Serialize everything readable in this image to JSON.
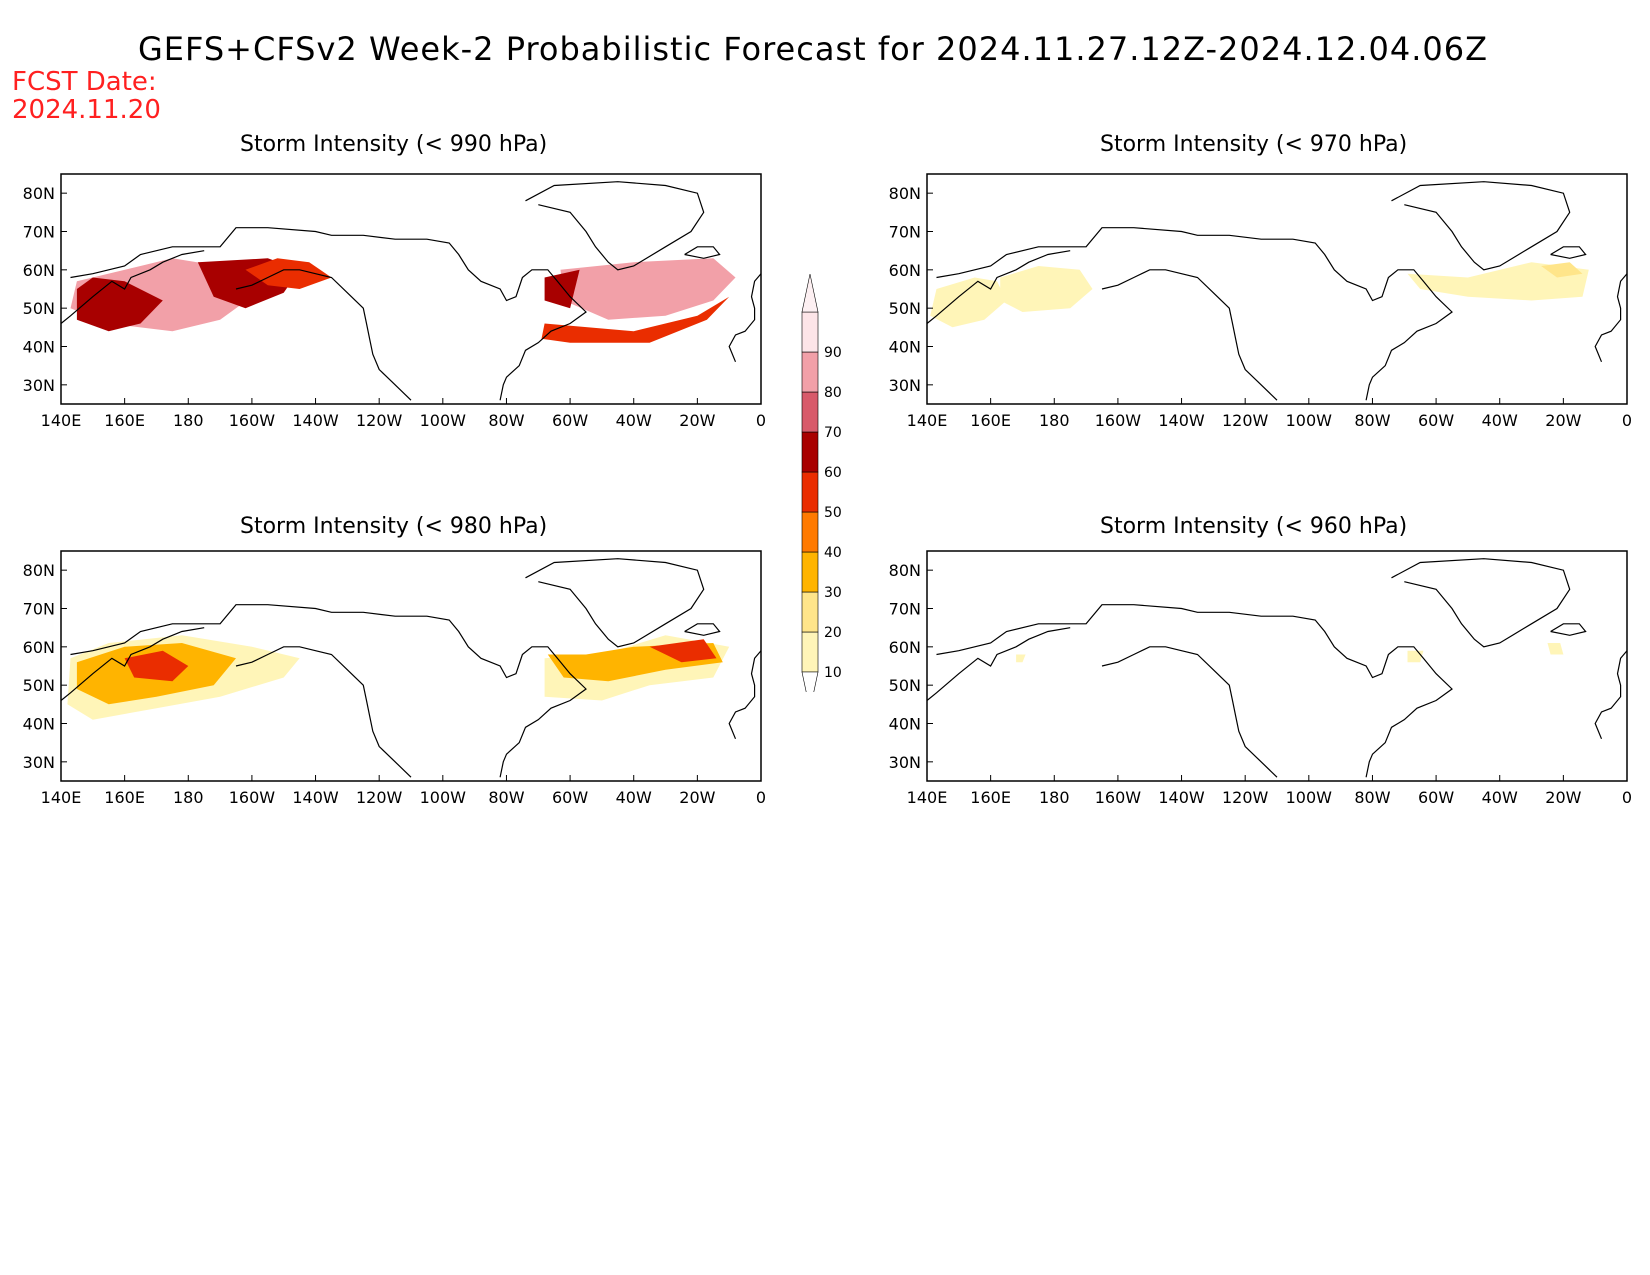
{
  "header": {
    "title": "GEFS+CFSv2 Week-2 Probabilistic Forecast for 2024.11.27.12Z-2024.12.04.06Z",
    "fcst_label": "FCST Date:",
    "fcst_date": "2024.11.20"
  },
  "axes": {
    "lon_labels": [
      "140E",
      "160E",
      "180",
      "160W",
      "140W",
      "120W",
      "100W",
      "80W",
      "60W",
      "40W",
      "20W",
      "0"
    ],
    "lat_labels": [
      "80N",
      "70N",
      "60N",
      "50N",
      "40N",
      "30N"
    ]
  },
  "panels": [
    {
      "id": "p990",
      "title": "Storm Intensity (< 990 hPa)",
      "regions": [
        {
          "level": 80,
          "pts": [
            [
              145,
              57
            ],
            [
              175,
              63
            ],
            [
              190,
              61
            ],
            [
              200,
              56
            ],
            [
              208,
              58
            ],
            [
              200,
              53
            ],
            [
              190,
              47
            ],
            [
              175,
              44
            ],
            [
              155,
              46
            ],
            [
              143,
              50
            ]
          ]
        },
        {
          "level": 60,
          "pts": [
            [
              145,
              55
            ],
            [
              150,
              58
            ],
            [
              160,
              57
            ],
            [
              172,
              52
            ],
            [
              165,
              46
            ],
            [
              155,
              44
            ],
            [
              145,
              47
            ]
          ]
        },
        {
          "level": 60,
          "pts": [
            [
              183,
              62
            ],
            [
              205,
              63
            ],
            [
              215,
              60
            ],
            [
              210,
              54
            ],
            [
              198,
              50
            ],
            [
              188,
              53
            ]
          ]
        },
        {
          "level": 50,
          "pts": [
            [
              198,
              60
            ],
            [
              208,
              63
            ],
            [
              218,
              62
            ],
            [
              225,
              58
            ],
            [
              215,
              55
            ],
            [
              205,
              56
            ]
          ]
        },
        {
          "level": 80,
          "pts": [
            [
              297,
              60
            ],
            [
              320,
              62
            ],
            [
              345,
              63
            ],
            [
              352,
              58
            ],
            [
              345,
              52
            ],
            [
              330,
              48
            ],
            [
              312,
              47
            ],
            [
              298,
              52
            ]
          ]
        },
        {
          "level": 60,
          "pts": [
            [
              292,
              58
            ],
            [
              303,
              60
            ],
            [
              300,
              50
            ],
            [
              292,
              52
            ]
          ]
        },
        {
          "level": 50,
          "pts": [
            [
              292,
              46
            ],
            [
              320,
              44
            ],
            [
              340,
              48
            ],
            [
              350,
              53
            ],
            [
              343,
              47
            ],
            [
              325,
              41
            ],
            [
              300,
              41
            ],
            [
              291,
              42
            ]
          ]
        }
      ]
    },
    {
      "id": "p970",
      "title": "Storm Intensity (< 970 hPa)",
      "regions": [
        {
          "level": 10,
          "pts": [
            [
              143,
              55
            ],
            [
              155,
              58
            ],
            [
              162,
              57
            ],
            [
              165,
              52
            ],
            [
              158,
              47
            ],
            [
              148,
              45
            ],
            [
              141,
              48
            ]
          ]
        },
        {
          "level": 10,
          "pts": [
            [
              163,
              58
            ],
            [
              175,
              61
            ],
            [
              188,
              60
            ],
            [
              192,
              55
            ],
            [
              185,
              50
            ],
            [
              170,
              49
            ],
            [
              163,
              52
            ]
          ]
        },
        {
          "level": 10,
          "pts": [
            [
              291,
              59
            ],
            [
              310,
              58
            ],
            [
              330,
              62
            ],
            [
              348,
              60
            ],
            [
              346,
              53
            ],
            [
              330,
              52
            ],
            [
              310,
              53
            ],
            [
              295,
              55
            ]
          ]
        },
        {
          "level": 20,
          "pts": [
            [
              333,
              61
            ],
            [
              342,
              62
            ],
            [
              346,
              59
            ],
            [
              338,
              58
            ]
          ]
        }
      ]
    },
    {
      "id": "p980",
      "title": "Storm Intensity (< 980 hPa)",
      "regions": [
        {
          "level": 10,
          "pts": [
            [
              143,
              57
            ],
            [
              155,
              61
            ],
            [
              178,
              63
            ],
            [
              200,
              60
            ],
            [
              215,
              57
            ],
            [
              210,
              52
            ],
            [
              190,
              47
            ],
            [
              170,
              44
            ],
            [
              150,
              41
            ],
            [
              142,
              45
            ]
          ]
        },
        {
          "level": 30,
          "pts": [
            [
              145,
              56
            ],
            [
              160,
              60
            ],
            [
              178,
              61
            ],
            [
              195,
              57
            ],
            [
              188,
              50
            ],
            [
              170,
              47
            ],
            [
              155,
              45
            ],
            [
              145,
              49
            ]
          ]
        },
        {
          "level": 50,
          "pts": [
            [
              160,
              57
            ],
            [
              172,
              59
            ],
            [
              180,
              55
            ],
            [
              175,
              51
            ],
            [
              163,
              52
            ]
          ]
        },
        {
          "level": 10,
          "pts": [
            [
              292,
              57
            ],
            [
              310,
              58
            ],
            [
              330,
              63
            ],
            [
              350,
              60
            ],
            [
              345,
              52
            ],
            [
              325,
              50
            ],
            [
              310,
              46
            ],
            [
              292,
              47
            ]
          ]
        },
        {
          "level": 30,
          "pts": [
            [
              293,
              58
            ],
            [
              305,
              58
            ],
            [
              320,
              60
            ],
            [
              345,
              61
            ],
            [
              348,
              56
            ],
            [
              330,
              54
            ],
            [
              312,
              51
            ],
            [
              298,
              52
            ]
          ]
        },
        {
          "level": 50,
          "pts": [
            [
              325,
              60
            ],
            [
              342,
              62
            ],
            [
              346,
              57
            ],
            [
              335,
              56
            ]
          ]
        }
      ]
    },
    {
      "id": "p960",
      "title": "Storm Intensity (< 960 hPa)",
      "regions": [
        {
          "level": 10,
          "pts": [
            [
              335,
              61
            ],
            [
              339,
              61
            ],
            [
              340,
              58
            ],
            [
              336,
              58
            ]
          ]
        },
        {
          "level": 10,
          "pts": [
            [
              291,
              59
            ],
            [
              296,
              59
            ],
            [
              295,
              56
            ],
            [
              291,
              56
            ]
          ]
        },
        {
          "level": 10,
          "pts": [
            [
              168,
              58
            ],
            [
              171,
              58
            ],
            [
              170,
              56
            ],
            [
              168,
              56
            ]
          ]
        }
      ]
    }
  ],
  "colorbar": {
    "levels": [
      "10",
      "20",
      "30",
      "40",
      "50",
      "60",
      "70",
      "80",
      "90"
    ],
    "colors": [
      "#fff5b8",
      "#ffe58a",
      "#ffb400",
      "#ff7a00",
      "#ea2d00",
      "#a80000",
      "#d85a6a",
      "#f2a0a8",
      "#fde5e8"
    ]
  }
}
